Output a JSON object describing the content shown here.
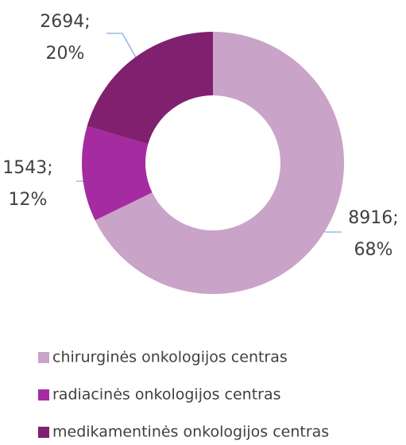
{
  "chart_data": {
    "type": "donut",
    "categories": [
      "chirurginės onkologijos centras",
      "radiacinės onkologijos centras",
      "medikamentinės onkologijos centras"
    ],
    "values": [
      8916,
      1543,
      2694
    ],
    "value_labels": [
      [
        "8916;",
        "68%"
      ],
      [
        "1543;",
        "12%"
      ],
      [
        "2694;",
        "20%"
      ]
    ],
    "colors": [
      "#c9a3c8",
      "#a42ba0",
      "#80206f"
    ],
    "legend": "bottom"
  }
}
